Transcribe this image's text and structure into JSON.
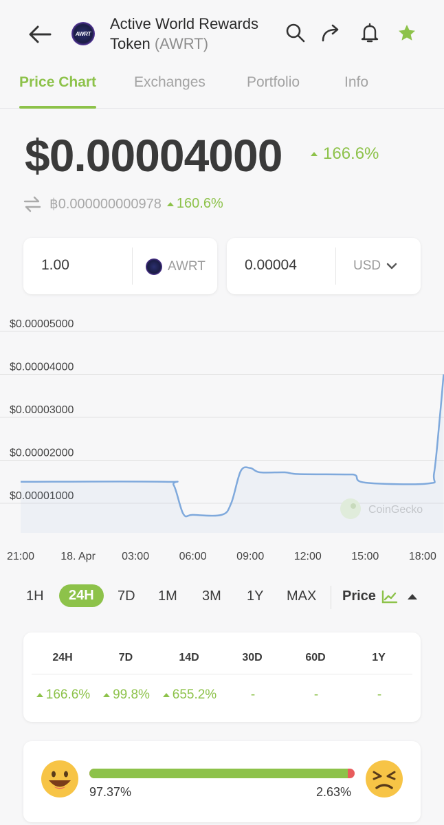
{
  "header": {
    "title_line1": "Active World Rewards",
    "title_line2": "Token",
    "symbol": "(AWRT)",
    "logo_text": "AWRT",
    "icons": [
      "back-arrow-icon",
      "search-icon",
      "share-icon",
      "bell-icon",
      "star-icon"
    ]
  },
  "tabs": [
    {
      "label": "Price Chart",
      "active": true
    },
    {
      "label": "Exchanges",
      "active": false
    },
    {
      "label": "Portfolio",
      "active": false
    },
    {
      "label": "Info",
      "active": false
    }
  ],
  "price": {
    "usd": "$0.00004000",
    "usd_change": "166.6%",
    "btc": "฿0.000000000978",
    "btc_change": "160.6%"
  },
  "converter": {
    "amount": "1.00",
    "amount_unit": "AWRT",
    "converted": "0.00004",
    "converted_unit": "USD"
  },
  "chart_data": {
    "type": "line",
    "y_ticks": [
      "$0.00005000",
      "$0.00004000",
      "$0.00003000",
      "$0.00002000",
      "$0.00001000"
    ],
    "y_tick_values": [
      5e-05,
      4e-05,
      3e-05,
      2e-05,
      1e-05
    ],
    "x_ticks": [
      "21:00",
      "18. Apr",
      "03:00",
      "06:00",
      "09:00",
      "12:00",
      "15:00",
      "18:00"
    ],
    "x_tick_hours": [
      0,
      3,
      6,
      9,
      12,
      15,
      18,
      21
    ],
    "ylim": [
      5e-06,
      5e-05
    ],
    "xlim": [
      0,
      22.1
    ],
    "watermark": "CoinGecko",
    "color": "#7fa9dc",
    "points": [
      [
        0,
        1.5e-05
      ],
      [
        7.5,
        1.5e-05
      ],
      [
        8.0,
        1.42e-05
      ],
      [
        8.5,
        7.5e-06
      ],
      [
        9.0,
        7.3e-06
      ],
      [
        10.5,
        7.3e-06
      ],
      [
        11.0,
        1e-05
      ],
      [
        11.5,
        1.75e-05
      ],
      [
        12.0,
        1.82e-05
      ],
      [
        12.5,
        1.72e-05
      ],
      [
        13.8,
        1.72e-05
      ],
      [
        14.5,
        1.68e-05
      ],
      [
        17.0,
        1.67e-05
      ],
      [
        17.5,
        1.65e-05
      ],
      [
        18.0,
        1.48e-05
      ],
      [
        21.3,
        1.46e-05
      ],
      [
        21.6,
        1.7e-05
      ],
      [
        21.9,
        3e-05
      ],
      [
        22.1,
        4e-05
      ]
    ]
  },
  "ranges": [
    {
      "label": "1H",
      "active": false
    },
    {
      "label": "24H",
      "active": true
    },
    {
      "label": "7D",
      "active": false
    },
    {
      "label": "1M",
      "active": false
    },
    {
      "label": "3M",
      "active": false
    },
    {
      "label": "1Y",
      "active": false
    },
    {
      "label": "MAX",
      "active": false
    }
  ],
  "price_toggle": "Price",
  "performance": {
    "headers": [
      "24H",
      "7D",
      "14D",
      "30D",
      "60D",
      "1Y"
    ],
    "values": [
      "166.6%",
      "99.8%",
      "655.2%",
      "-",
      "-",
      "-"
    ]
  },
  "sentiment": {
    "positive": "97.37%",
    "negative": "2.63%",
    "positive_fraction": 0.9737,
    "icons": [
      "happy-face-icon",
      "angry-face-icon"
    ]
  },
  "colors": {
    "accent": "#8dc24a",
    "negative": "#e85c5c",
    "chart_line": "#7fa9dc"
  }
}
